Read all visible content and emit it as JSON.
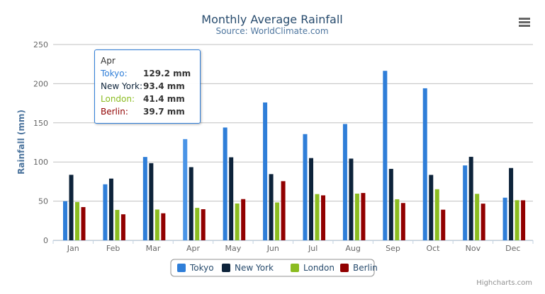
{
  "chart_data": {
    "type": "bar",
    "title": "Monthly Average Rainfall",
    "subtitle": "Source: WorldClimate.com",
    "xlabel": "",
    "ylabel": "Rainfall (mm)",
    "ylim": [
      0,
      250
    ],
    "yticks": [
      0,
      50,
      100,
      150,
      200,
      250
    ],
    "grid": true,
    "legend": "bottom",
    "categories": [
      "Jan",
      "Feb",
      "Mar",
      "Apr",
      "May",
      "Jun",
      "Jul",
      "Aug",
      "Sep",
      "Oct",
      "Nov",
      "Dec"
    ],
    "series": [
      {
        "name": "Tokyo",
        "color": "#2f7ed8",
        "values": [
          49.9,
          71.5,
          106.4,
          129.2,
          144.0,
          176.0,
          135.6,
          148.5,
          216.4,
          194.1,
          95.6,
          54.4
        ]
      },
      {
        "name": "New York",
        "color": "#0d233a",
        "values": [
          83.6,
          78.8,
          98.5,
          93.4,
          106.0,
          84.5,
          105.0,
          104.3,
          91.2,
          83.5,
          106.6,
          92.3
        ]
      },
      {
        "name": "London",
        "color": "#8bbc21",
        "values": [
          48.9,
          38.8,
          39.3,
          41.4,
          47.0,
          48.3,
          59.0,
          59.6,
          52.4,
          65.2,
          59.3,
          51.2
        ]
      },
      {
        "name": "Berlin",
        "color": "#910000",
        "values": [
          42.4,
          33.2,
          34.5,
          39.7,
          52.6,
          75.5,
          57.4,
          60.4,
          47.6,
          39.1,
          46.8,
          51.1
        ]
      }
    ]
  },
  "tooltip": {
    "header": "Apr",
    "rows": [
      {
        "label": "Tokyo:",
        "value": "129.2 mm",
        "color": "#2f7ed8"
      },
      {
        "label": "New York:",
        "value": "93.4 mm",
        "color": "#0d233a"
      },
      {
        "label": "London:",
        "value": "41.4 mm",
        "color": "#8bbc21"
      },
      {
        "label": "Berlin:",
        "value": "39.7 mm",
        "color": "#910000"
      }
    ]
  },
  "credits": "Highcharts.com",
  "menu_icon": "hamburger-menu-icon"
}
